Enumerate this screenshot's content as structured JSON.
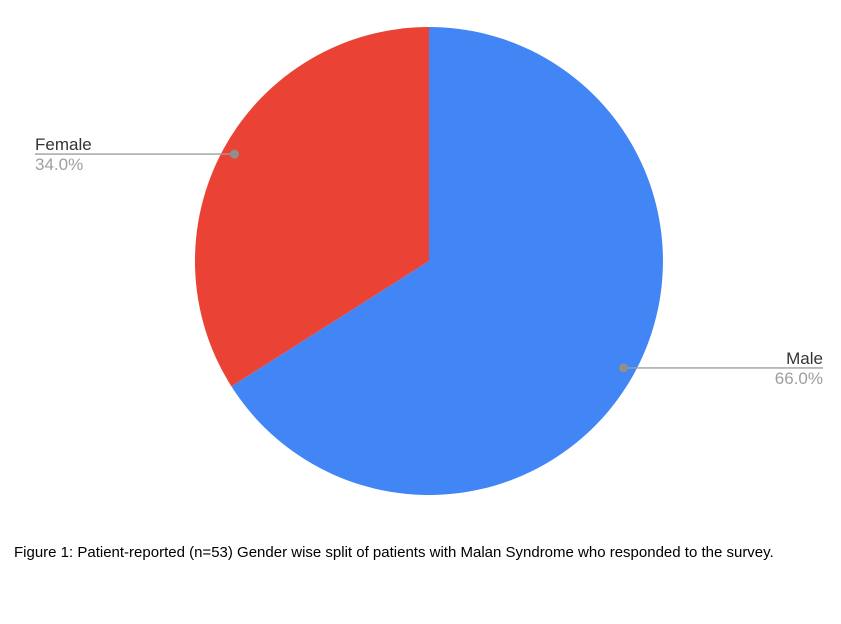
{
  "chart_data": {
    "type": "pie",
    "title": "",
    "categories": [
      "Male",
      "Female"
    ],
    "values": [
      66.0,
      34.0
    ],
    "value_unit": "percent",
    "n_reported": 53,
    "slice_colors": [
      "#4285f4",
      "#ea4335"
    ],
    "start_angle_deg": 0,
    "direction": "clockwise",
    "legend_position": "none",
    "labels": [
      {
        "name": "Male",
        "percent": "66.0%",
        "side": "right"
      },
      {
        "name": "Female",
        "percent": "34.0%",
        "side": "left"
      }
    ]
  },
  "caption": {
    "text": "Figure 1: Patient-reported (n=53) Gender wise split of patients with Malan Syndrome who responded to the survey."
  },
  "colors": {
    "male_slice": "#4285f4",
    "female_slice": "#ea4335",
    "label_name_text": "#333333",
    "label_percent_text": "#9e9e9e",
    "leader_line": "#9e9e9e",
    "leader_dot": "#8f8f8f",
    "background": "#ffffff"
  }
}
